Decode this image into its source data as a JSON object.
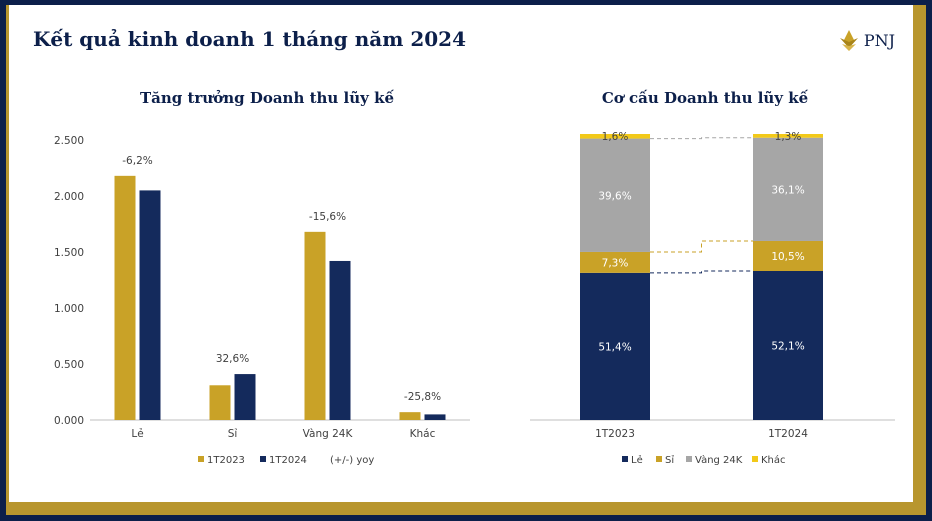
{
  "slide": {
    "title": "Kết quả kinh doanh 1 tháng năm 2024",
    "logo_text": "PNJ",
    "logo_icon": "pnj-lotus-logo"
  },
  "colors": {
    "frame_outer": "#0c1f4a",
    "frame_gold": "#b8962e",
    "series_2023": "#c9a227",
    "series_2024": "#142a5c",
    "le": "#142a5c",
    "si": "#c9a227",
    "vang24k": "#a6a6a6",
    "khac": "#f2c919"
  },
  "chart_data": [
    {
      "type": "bar",
      "title": "Tăng trưởng Doanh thu lũy kế",
      "categories": [
        "Lẻ",
        "Sỉ",
        "Vàng 24K",
        "Khác"
      ],
      "series": [
        {
          "name": "1T2023",
          "values": [
            2.18,
            0.31,
            1.68,
            0.07
          ]
        },
        {
          "name": "1T2024",
          "values": [
            2.05,
            0.41,
            1.42,
            0.05
          ]
        }
      ],
      "annotations": [
        "-6,2%",
        "32,6%",
        "-15,6%",
        "-25,8%"
      ],
      "annotation_legend": "(+/-) yoy",
      "yticks": [
        "0.000",
        "0.500",
        "1.000",
        "1.500",
        "2.000",
        "2.500"
      ],
      "ylim": [
        0,
        2.5
      ],
      "legend": "bottom",
      "grid": false
    },
    {
      "type": "bar",
      "stacked": true,
      "percent": true,
      "title": "Cơ cấu Doanh thu lũy kế",
      "categories": [
        "1T2023",
        "1T2024"
      ],
      "series": [
        {
          "name": "Lẻ",
          "values": [
            51.4,
            52.1
          ],
          "labels": [
            "51,4%",
            "52,1%"
          ]
        },
        {
          "name": "Sỉ",
          "values": [
            7.3,
            10.5
          ],
          "labels": [
            "7,3%",
            "10,5%"
          ]
        },
        {
          "name": "Vàng 24K",
          "values": [
            39.6,
            36.1
          ],
          "labels": [
            "39,6%",
            "36,1%"
          ]
        },
        {
          "name": "Khác",
          "values": [
            1.6,
            1.3
          ],
          "labels": [
            "1,6%",
            "1,3%"
          ]
        }
      ],
      "legend": "bottom",
      "grid": false
    }
  ]
}
